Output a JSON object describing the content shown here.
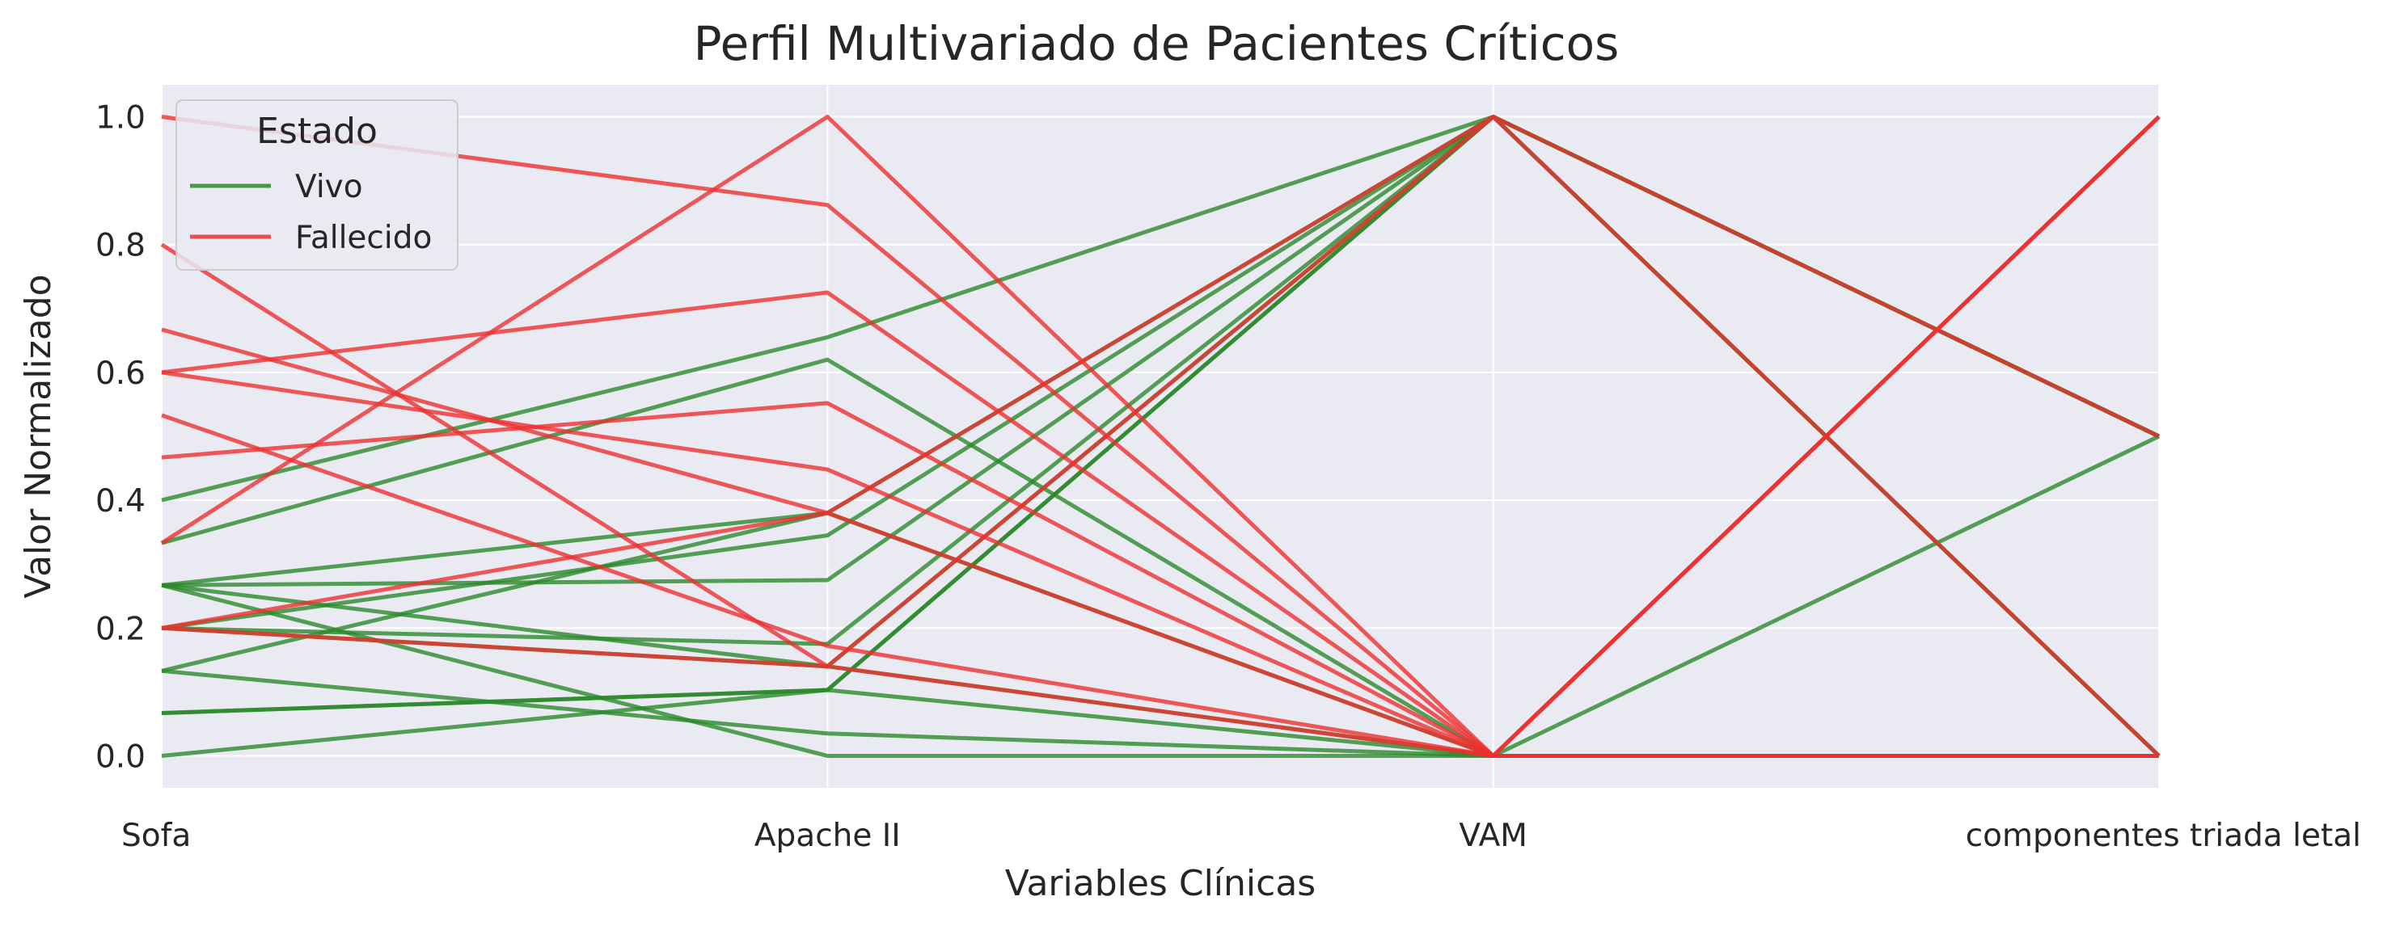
{
  "chart_data": {
    "type": "line",
    "title": "Perfil Multivariado de Pacientes Críticos",
    "xlabel": "Variables Clínicas",
    "ylabel": "Valor Normalizado",
    "categories": [
      "Sofa",
      "Apache II",
      "VAM",
      "componentes triada letal"
    ],
    "ylim": [
      -0.05,
      1.05
    ],
    "yticks": [
      0.0,
      0.2,
      0.4,
      0.6,
      0.8,
      1.0
    ],
    "grid": true,
    "legend": {
      "title": "Estado",
      "placement": "top-left",
      "entries": [
        {
          "label": "Vivo",
          "color": "#2a8a2a"
        },
        {
          "label": "Fallecido",
          "color": "#ee3030"
        }
      ]
    },
    "colors": {
      "Vivo": "#2a8a2a",
      "Fallecido": "#ee3030",
      "background": "#eaeaf2",
      "grid": "#ffffff"
    },
    "series": [
      {
        "group": "Vivo",
        "values": [
          0.4,
          0.655,
          1.0,
          0.5
        ]
      },
      {
        "group": "Vivo",
        "values": [
          0.333,
          0.62,
          0.0,
          0.0
        ]
      },
      {
        "group": "Vivo",
        "values": [
          0.267,
          0.38,
          0.0,
          0.0
        ]
      },
      {
        "group": "Vivo",
        "values": [
          0.267,
          0.275,
          1.0,
          0.5
        ]
      },
      {
        "group": "Vivo",
        "values": [
          0.267,
          0.14,
          1.0,
          0.5
        ]
      },
      {
        "group": "Vivo",
        "values": [
          0.2,
          0.345,
          1.0,
          0.5
        ]
      },
      {
        "group": "Vivo",
        "values": [
          0.2,
          0.175,
          1.0,
          0.5
        ]
      },
      {
        "group": "Vivo",
        "values": [
          0.2,
          0.14,
          0.0,
          0.5
        ]
      },
      {
        "group": "Vivo",
        "values": [
          0.133,
          0.035,
          0.0,
          0.0
        ]
      },
      {
        "group": "Vivo",
        "values": [
          0.133,
          0.38,
          1.0,
          0.0
        ]
      },
      {
        "group": "Vivo",
        "values": [
          0.067,
          0.103,
          1.0,
          0.0
        ]
      },
      {
        "group": "Vivo",
        "values": [
          0.067,
          0.103,
          1.0,
          0.5
        ]
      },
      {
        "group": "Vivo",
        "values": [
          0.0,
          0.103,
          0.0,
          0.0
        ]
      },
      {
        "group": "Vivo",
        "values": [
          0.267,
          0.0,
          0.0,
          0.0
        ]
      },
      {
        "group": "Fallecido",
        "values": [
          1.0,
          0.862,
          0.0,
          1.0
        ]
      },
      {
        "group": "Fallecido",
        "values": [
          0.8,
          0.14,
          1.0,
          0.5
        ]
      },
      {
        "group": "Fallecido",
        "values": [
          0.667,
          0.38,
          0.0,
          0.0
        ]
      },
      {
        "group": "Fallecido",
        "values": [
          0.6,
          0.725,
          0.0,
          1.0
        ]
      },
      {
        "group": "Fallecido",
        "values": [
          0.6,
          0.448,
          0.0,
          0.0
        ]
      },
      {
        "group": "Fallecido",
        "values": [
          0.533,
          0.172,
          0.0,
          0.0
        ]
      },
      {
        "group": "Fallecido",
        "values": [
          0.467,
          0.552,
          0.0,
          0.0
        ]
      },
      {
        "group": "Fallecido",
        "values": [
          0.333,
          1.0,
          0.0,
          1.0
        ]
      },
      {
        "group": "Fallecido",
        "values": [
          0.2,
          0.14,
          0.0,
          0.0
        ]
      },
      {
        "group": "Fallecido",
        "values": [
          0.2,
          0.38,
          1.0,
          0.0
        ]
      }
    ]
  }
}
